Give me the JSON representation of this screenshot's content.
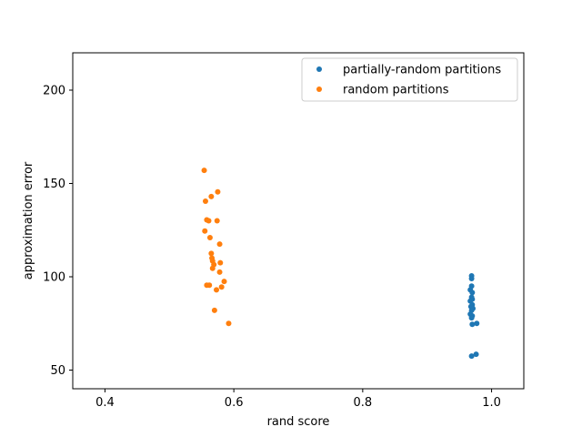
{
  "chart_data": {
    "type": "scatter",
    "xlabel": "rand score",
    "ylabel": "approximation error",
    "xlim": [
      0.35,
      1.05
    ],
    "ylim": [
      40,
      220
    ],
    "xticks": [
      0.4,
      0.6,
      0.8,
      1.0
    ],
    "xtick_labels": [
      "0.4",
      "0.6",
      "0.8",
      "1.0"
    ],
    "yticks": [
      50,
      100,
      150,
      200
    ],
    "ytick_labels": [
      "50",
      "100",
      "150",
      "200"
    ],
    "grid": false,
    "legend": {
      "placement": "top-right"
    },
    "series": [
      {
        "name": "partially-random partitions",
        "color": "#1f77b4",
        "points": [
          [
            0.969,
            100.5
          ],
          [
            0.969,
            99.0
          ],
          [
            0.967,
            93.0
          ],
          [
            0.969,
            95.0
          ],
          [
            0.97,
            91.5
          ],
          [
            0.969,
            89.0
          ],
          [
            0.97,
            88.0
          ],
          [
            0.967,
            87.0
          ],
          [
            0.97,
            85.0
          ],
          [
            0.968,
            84.0
          ],
          [
            0.971,
            83.0
          ],
          [
            0.969,
            82.0
          ],
          [
            0.967,
            80.0
          ],
          [
            0.97,
            79.0
          ],
          [
            0.969,
            78.0
          ],
          [
            0.97,
            74.5
          ],
          [
            0.977,
            75.0
          ],
          [
            0.969,
            57.5
          ],
          [
            0.976,
            58.5
          ]
        ]
      },
      {
        "name": "random partitions",
        "color": "#ff7f0e",
        "points": [
          [
            0.554,
            157.0
          ],
          [
            0.575,
            145.5
          ],
          [
            0.565,
            143.0
          ],
          [
            0.556,
            140.5
          ],
          [
            0.558,
            130.5
          ],
          [
            0.561,
            130.0
          ],
          [
            0.574,
            130.0
          ],
          [
            0.555,
            124.5
          ],
          [
            0.563,
            121.0
          ],
          [
            0.578,
            117.5
          ],
          [
            0.565,
            112.5
          ],
          [
            0.566,
            110.0
          ],
          [
            0.567,
            108.5
          ],
          [
            0.579,
            107.5
          ],
          [
            0.569,
            106.5
          ],
          [
            0.567,
            104.5
          ],
          [
            0.578,
            102.5
          ],
          [
            0.585,
            97.5
          ],
          [
            0.558,
            95.5
          ],
          [
            0.562,
            95.5
          ],
          [
            0.581,
            94.5
          ],
          [
            0.573,
            93.0
          ],
          [
            0.57,
            82.0
          ],
          [
            0.592,
            75.0
          ]
        ]
      }
    ]
  }
}
